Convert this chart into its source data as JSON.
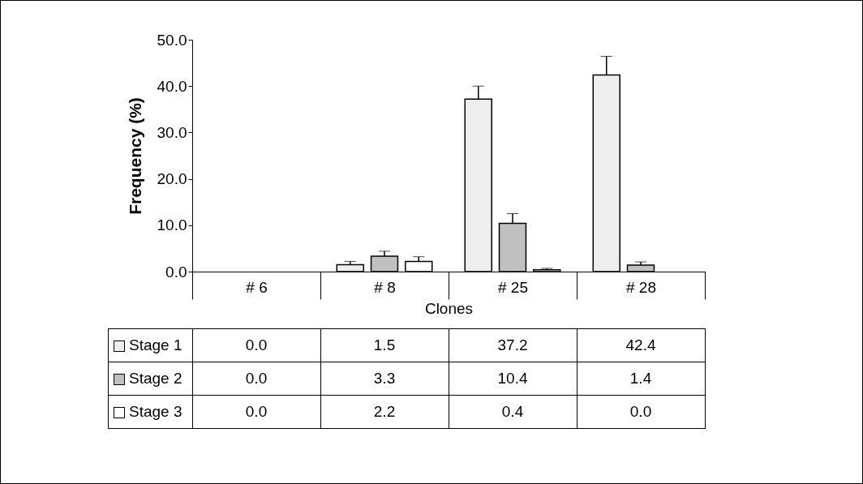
{
  "chart_data": {
    "type": "bar",
    "ylabel": "Frequency (%)",
    "xlabel": "Clones",
    "categories": [
      "# 6",
      "# 8",
      "# 25",
      "# 28"
    ],
    "series": [
      {
        "name": "Stage 1",
        "color": "#eeeeee",
        "values": [
          0.0,
          1.5,
          37.2,
          42.4
        ],
        "errors": [
          null,
          0.7,
          2.8,
          4.0
        ],
        "value_labels": [
          "0.0",
          "1.5",
          "37.2",
          "42.4"
        ]
      },
      {
        "name": "Stage 2",
        "color": "#c0c0c0",
        "values": [
          0.0,
          3.3,
          10.4,
          1.4
        ],
        "errors": [
          null,
          1.1,
          2.1,
          0.7
        ],
        "value_labels": [
          "0.0",
          "3.3",
          "10.4",
          "1.4"
        ]
      },
      {
        "name": "Stage 3",
        "color": "#ffffff",
        "values": [
          0.0,
          2.2,
          0.4,
          0.0
        ],
        "errors": [
          null,
          1.0,
          0.3,
          null
        ],
        "value_labels": [
          "0.0",
          "2.2",
          "0.4",
          "0.0"
        ]
      }
    ],
    "ylim": [
      0,
      50
    ],
    "yticks": [
      {
        "value": 0,
        "label": "0.0"
      },
      {
        "value": 10,
        "label": "10.0"
      },
      {
        "value": 20,
        "label": "20.0"
      },
      {
        "value": 30,
        "label": "30.0"
      },
      {
        "value": 40,
        "label": "40.0"
      },
      {
        "value": 50,
        "label": "50.0"
      }
    ],
    "grid": false,
    "legend": "bottom left"
  }
}
